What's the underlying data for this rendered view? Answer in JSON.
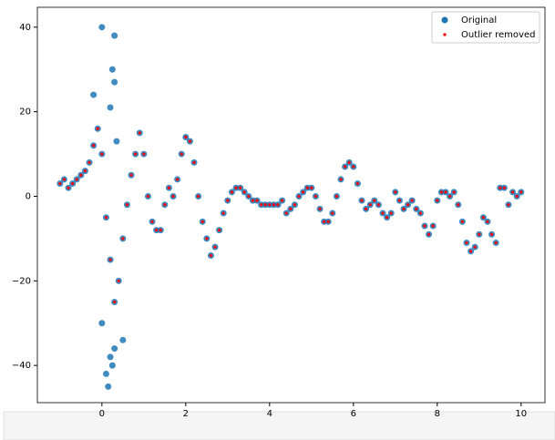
{
  "chart_data": {
    "type": "scatter",
    "xlim": [
      -1.54,
      10.57
    ],
    "ylim": [
      -48.8,
      44.7
    ],
    "xticks": [
      0,
      2,
      4,
      6,
      8,
      10
    ],
    "yticks": [
      {
        "value": -40,
        "label": "−40"
      },
      {
        "value": -20,
        "label": "−20"
      },
      0,
      20,
      40
    ],
    "legend": "upper right",
    "series": [
      {
        "name": "Original",
        "color": "#1f77b4",
        "marker": "large",
        "x": [
          -1,
          -0.9,
          -0.8,
          -0.7,
          -0.6,
          -0.5,
          -0.4,
          -0.3,
          -0.2,
          -0.1,
          0,
          0.1,
          0.2,
          0.3,
          0.4,
          0.5,
          0.6,
          0.7,
          0.8,
          0.9,
          1,
          1.1,
          1.2,
          1.3,
          1.4,
          1.5,
          1.6,
          1.7,
          1.8,
          1.9,
          2,
          2.1,
          2.2,
          2.3,
          2.4,
          2.5,
          2.6,
          2.7,
          2.8,
          2.9,
          3,
          3.1,
          3.2,
          3.3,
          3.4,
          3.5,
          3.6,
          3.7,
          3.8,
          3.9,
          4,
          4.1,
          4.2,
          4.3,
          4.4,
          4.5,
          4.6,
          4.7,
          4.8,
          4.9,
          5,
          5.1,
          5.2,
          5.3,
          5.4,
          5.5,
          5.6,
          5.7,
          5.8,
          5.9,
          6,
          6.1,
          6.2,
          6.3,
          6.4,
          6.5,
          6.6,
          6.7,
          6.8,
          6.9,
          7,
          7.1,
          7.2,
          7.3,
          7.4,
          7.5,
          7.6,
          7.7,
          7.8,
          7.9,
          8,
          8.1,
          8.2,
          8.3,
          8.4,
          8.5,
          8.6,
          8.7,
          8.8,
          8.9,
          9,
          9.1,
          9.2,
          9.3,
          9.4,
          9.5,
          9.6,
          9.7,
          9.8,
          9.9,
          10,
          0,
          0.3,
          0.25,
          0.3,
          0.2,
          -0.2,
          0.35,
          0.2,
          0.25,
          0.1,
          0.15,
          0.5,
          0.3,
          0
        ],
        "values": [
          3,
          4,
          2,
          3,
          4,
          5,
          6,
          8,
          12,
          16,
          10,
          -5,
          -15,
          -25,
          -20,
          -10,
          -2,
          5,
          10,
          15,
          10,
          0,
          -6,
          -8,
          -8,
          -2,
          2,
          0,
          4,
          10,
          14,
          13,
          8,
          0,
          -6,
          -10,
          -14,
          -12,
          -8,
          -4,
          -1,
          1,
          2,
          2,
          1,
          0,
          -1,
          -1,
          -2,
          -2,
          -2,
          -2,
          -2,
          -1,
          -4,
          -3,
          -2,
          0,
          1,
          2,
          2,
          0,
          -3,
          -6,
          -6,
          -4,
          0,
          4,
          7,
          8,
          7,
          3,
          -1,
          -3,
          -2,
          -1,
          -2,
          -4,
          -5,
          -4,
          1,
          -1,
          -3,
          -2,
          -1,
          -3,
          -4,
          -7,
          -9,
          -7,
          -1,
          1,
          1,
          0,
          1,
          -2,
          -6,
          -11,
          -13,
          -12,
          -9,
          -5,
          -6,
          -9,
          -11,
          2,
          2,
          -2,
          1,
          0,
          1,
          40,
          38,
          30,
          27,
          21,
          24,
          13,
          -38,
          -40,
          -42,
          -45,
          -34,
          -36,
          -30
        ]
      },
      {
        "name": "Outlier removed",
        "color": "#ff0000",
        "marker": "small",
        "x": [
          -1,
          -0.9,
          -0.8,
          -0.7,
          -0.6,
          -0.5,
          -0.4,
          -0.3,
          -0.2,
          -0.1,
          0,
          0.1,
          0.2,
          0.3,
          0.4,
          0.5,
          0.6,
          0.7,
          0.8,
          0.9,
          1,
          1.1,
          1.2,
          1.3,
          1.4,
          1.5,
          1.6,
          1.7,
          1.8,
          1.9,
          2,
          2.1,
          2.2,
          2.3,
          2.4,
          2.5,
          2.6,
          2.7,
          2.8,
          2.9,
          3,
          3.1,
          3.2,
          3.3,
          3.4,
          3.5,
          3.6,
          3.7,
          3.8,
          3.9,
          4,
          4.1,
          4.2,
          4.3,
          4.4,
          4.5,
          4.6,
          4.7,
          4.8,
          4.9,
          5,
          5.1,
          5.2,
          5.3,
          5.4,
          5.5,
          5.6,
          5.7,
          5.8,
          5.9,
          6,
          6.1,
          6.2,
          6.3,
          6.4,
          6.5,
          6.6,
          6.7,
          6.8,
          6.9,
          7,
          7.1,
          7.2,
          7.3,
          7.4,
          7.5,
          7.6,
          7.7,
          7.8,
          7.9,
          8,
          8.1,
          8.2,
          8.3,
          8.4,
          8.5,
          8.6,
          8.7,
          8.8,
          8.9,
          9,
          9.1,
          9.2,
          9.3,
          9.4,
          9.5,
          9.6,
          9.7,
          9.8,
          9.9,
          10
        ],
        "values": [
          3,
          4,
          2,
          3,
          4,
          5,
          6,
          8,
          12,
          16,
          10,
          -5,
          -15,
          -25,
          -20,
          -10,
          -2,
          5,
          10,
          15,
          10,
          0,
          -6,
          -8,
          -8,
          -2,
          2,
          0,
          4,
          10,
          14,
          13,
          8,
          0,
          -6,
          -10,
          -14,
          -12,
          -8,
          -4,
          -1,
          1,
          2,
          2,
          1,
          0,
          -1,
          -1,
          -2,
          -2,
          -2,
          -2,
          -2,
          -1,
          -4,
          -3,
          -2,
          0,
          1,
          2,
          2,
          0,
          -3,
          -6,
          -6,
          -4,
          0,
          4,
          7,
          8,
          7,
          3,
          -1,
          -3,
          -2,
          -1,
          -2,
          -4,
          -5,
          -4,
          1,
          -1,
          -3,
          -2,
          -1,
          -3,
          -4,
          -7,
          -9,
          -7,
          -1,
          1,
          1,
          0,
          1,
          -2,
          -6,
          -11,
          -13,
          -12,
          -9,
          -5,
          -6,
          -9,
          -11,
          2,
          2,
          -2,
          1,
          0,
          1
        ]
      }
    ]
  }
}
